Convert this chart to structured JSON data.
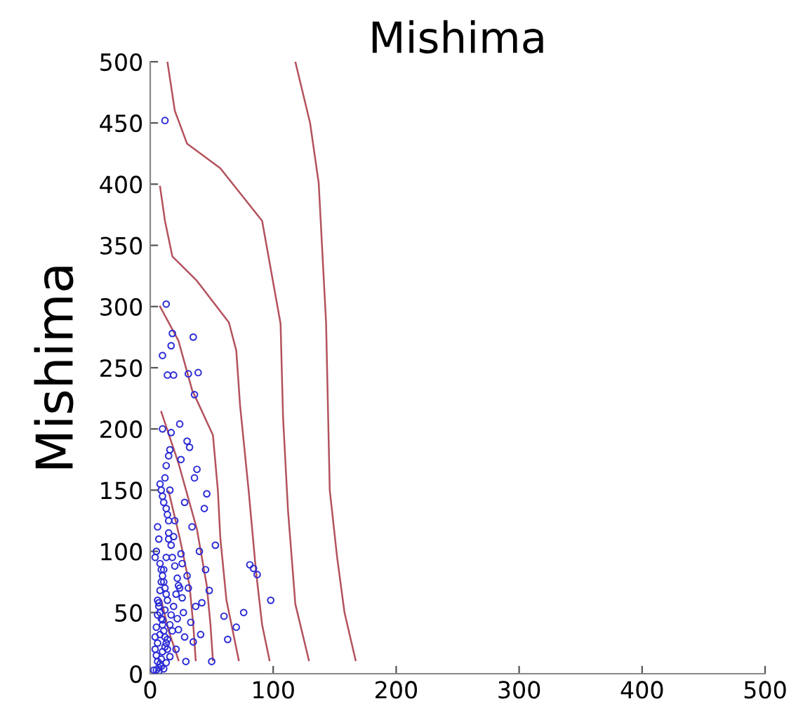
{
  "chart_data": {
    "type": "scatter",
    "title": "Mishima",
    "ylabel": "Mishima",
    "xlim": [
      0,
      500
    ],
    "ylim": [
      0,
      500
    ],
    "xticks": [
      0,
      100,
      200,
      300,
      400,
      500
    ],
    "yticks": [
      0,
      50,
      100,
      150,
      200,
      250,
      300,
      350,
      400,
      450,
      500
    ],
    "grid": false,
    "series": [
      {
        "marker": "circle",
        "color": "#2b2bd6",
        "x": [
          12,
          13,
          18,
          17,
          35,
          10,
          14,
          19,
          31,
          39,
          36,
          10,
          17,
          24,
          16,
          15,
          30,
          32,
          25,
          38,
          13,
          46,
          44,
          53,
          81,
          84,
          87,
          98,
          76,
          70,
          60,
          63,
          48,
          50,
          29,
          40,
          45,
          34,
          28,
          36,
          8,
          9,
          10,
          11,
          12,
          13,
          14,
          15,
          16,
          6,
          7,
          5,
          4,
          8,
          9,
          10,
          11,
          12,
          13,
          14,
          15,
          17,
          18,
          20,
          22,
          24,
          6,
          7,
          8,
          9,
          10,
          11,
          12,
          13,
          14,
          16,
          19,
          21,
          23,
          26,
          5,
          6,
          7,
          8,
          9,
          10,
          12,
          14,
          18,
          22,
          27,
          33,
          3,
          4,
          5,
          6,
          7,
          8,
          9,
          11,
          13,
          15,
          20,
          25,
          30,
          42,
          5,
          7,
          9,
          11,
          13,
          16,
          21,
          28,
          35,
          4,
          6,
          8,
          10,
          12,
          17,
          23,
          19,
          26,
          31,
          37,
          41
        ],
        "values": [
          452,
          302,
          278,
          268,
          275,
          260,
          244,
          244,
          245,
          246,
          228,
          200,
          197,
          204,
          183,
          178,
          190,
          185,
          175,
          167,
          170,
          147,
          135,
          105,
          89,
          86,
          81,
          60,
          50,
          38,
          47,
          28,
          68,
          10,
          10,
          100,
          85,
          120,
          140,
          160,
          155,
          150,
          145,
          140,
          160,
          135,
          130,
          125,
          150,
          120,
          110,
          100,
          95,
          90,
          85,
          80,
          75,
          70,
          65,
          60,
          115,
          105,
          95,
          88,
          78,
          70,
          60,
          55,
          50,
          45,
          40,
          35,
          30,
          25,
          20,
          40,
          55,
          65,
          72,
          62,
          15,
          10,
          5,
          8,
          12,
          18,
          22,
          28,
          35,
          45,
          50,
          42,
          3,
          30,
          38,
          48,
          58,
          68,
          75,
          85,
          95,
          110,
          125,
          98,
          80,
          58,
          3,
          2,
          6,
          4,
          9,
          14,
          20,
          30,
          26,
          20,
          25,
          32,
          44,
          52,
          48,
          36,
          112,
          90,
          70,
          55,
          32
        ]
      },
      {
        "type": "line",
        "color": "#b3525c",
        "x": [
          14,
          20,
          30,
          57,
          91,
          106,
          108,
          112,
          118,
          129
        ],
        "values": [
          500,
          460,
          433,
          413,
          370,
          286,
          210,
          134,
          57,
          11
        ]
      },
      {
        "type": "line",
        "color": "#b3525c",
        "x": [
          118,
          130,
          137,
          143,
          146,
          152,
          158,
          167
        ],
        "values": [
          500,
          450,
          401,
          287,
          150,
          95,
          50,
          11
        ]
      },
      {
        "type": "line",
        "color": "#b3525c",
        "x": [
          8,
          12,
          18,
          38,
          64,
          70,
          73,
          80,
          86,
          91,
          97
        ],
        "values": [
          398,
          370,
          341,
          321,
          287,
          264,
          220,
          150,
          84,
          40,
          11
        ]
      },
      {
        "type": "line",
        "color": "#b3525c",
        "x": [
          8,
          23,
          34,
          51,
          55,
          57,
          62,
          72
        ],
        "values": [
          300,
          272,
          232,
          195,
          150,
          111,
          60,
          11
        ]
      },
      {
        "type": "line",
        "color": "#b3525c",
        "x": [
          9,
          23,
          38,
          46,
          49,
          51
        ],
        "values": [
          214,
          172,
          118,
          72,
          40,
          11
        ]
      },
      {
        "type": "line",
        "color": "#b3525c",
        "x": [
          15,
          24,
          32,
          35,
          37
        ],
        "values": [
          149,
          111,
          72,
          40,
          11
        ]
      },
      {
        "type": "line",
        "color": "#b3525c",
        "x": [
          9,
          15,
          23
        ],
        "values": [
          60,
          35,
          11
        ]
      }
    ]
  }
}
